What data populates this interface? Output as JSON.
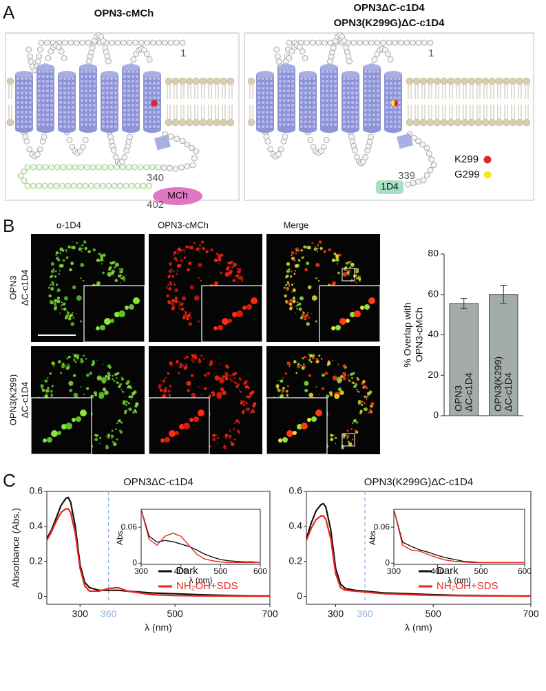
{
  "panel_labels": [
    "A",
    "B",
    "C"
  ],
  "panel_a": {
    "left_title": "OPN3-cMCh",
    "right_title": [
      "OPN3ΔC-c1D4",
      "OPN3(K299G)ΔC-c1D4"
    ],
    "left": {
      "n_terminus": "1",
      "c_end": "340",
      "tag_end": "402",
      "tag": "MCh"
    },
    "right": {
      "n_terminus": "1",
      "c_end": "339",
      "tag": "1D4",
      "legend": [
        {
          "label": "K299",
          "color": "#e0262a"
        },
        {
          "label": "G299",
          "color": "#f5e81c"
        }
      ]
    }
  },
  "panel_b": {
    "columns": [
      "α-1D4",
      "OPN3-cMCh",
      "Merge"
    ],
    "rows": [
      [
        "OPN3",
        "ΔC-c1D4"
      ],
      [
        "OPN3(K299)",
        "ΔC-c1D4"
      ]
    ]
  },
  "chart_data": [
    {
      "type": "bar",
      "ylabel": [
        "% Overlap with",
        "OPN3-cMCh"
      ],
      "categories": [
        [
          "OPN3",
          "ΔC-c1D4"
        ],
        [
          "OPN3(K299)",
          "ΔC-c1D4"
        ]
      ],
      "values": [
        55.5,
        60
      ],
      "errors": [
        2.5,
        4.5
      ],
      "color": "#a4aca8",
      "ylim": [
        0,
        80
      ],
      "yticks": [
        0,
        20,
        40,
        60,
        80
      ]
    },
    {
      "type": "line",
      "title": "OPN3ΔC-c1D4",
      "xlabel": "λ (nm)",
      "ylabel": "Absorbance (Abs.)",
      "x": [
        230,
        240,
        250,
        260,
        270,
        275,
        280,
        290,
        300,
        310,
        320,
        340,
        360,
        380,
        400,
        450,
        500,
        550,
        600,
        650,
        700
      ],
      "series": [
        {
          "name": "Dark",
          "color": "#111111",
          "values": [
            0.33,
            0.38,
            0.45,
            0.52,
            0.56,
            0.565,
            0.54,
            0.4,
            0.18,
            0.08,
            0.05,
            0.035,
            0.035,
            0.035,
            0.03,
            0.02,
            0.015,
            0.01,
            0.006,
            0.003,
            0.002
          ]
        },
        {
          "name": "NH₂OH+SDS",
          "color": "#e8261c",
          "values": [
            0.32,
            0.37,
            0.43,
            0.48,
            0.5,
            0.5,
            0.48,
            0.36,
            0.16,
            0.06,
            0.03,
            0.03,
            0.045,
            0.05,
            0.03,
            0.01,
            0.005,
            0.003,
            0.002,
            0.001,
            0.001
          ]
        }
      ],
      "xlim": [
        230,
        700
      ],
      "xticks": [
        300,
        500,
        700
      ],
      "ylim": [
        -0.045,
        0.6
      ],
      "yticks": [
        0,
        0.2,
        0.4,
        0.6
      ],
      "vline": {
        "value": 360,
        "color": "#8fb2e0"
      },
      "legend": "lower right"
    },
    {
      "type": "line",
      "ylabel": "Abs.",
      "xlabel": "λ (nm)",
      "x": [
        300,
        320,
        340,
        360,
        380,
        400,
        420,
        440,
        460,
        480,
        500,
        520,
        540,
        560,
        580,
        600
      ],
      "series": [
        {
          "name": "Dark",
          "color": "#111111",
          "values": [
            0.09,
            0.045,
            0.035,
            0.038,
            0.036,
            0.032,
            0.028,
            0.022,
            0.015,
            0.01,
            0.006,
            0.004,
            0.003,
            0.002,
            0.002,
            0.001
          ]
        },
        {
          "name": "NH₂OH+SDS",
          "color": "#e8261c",
          "values": [
            0.09,
            0.04,
            0.03,
            0.045,
            0.05,
            0.045,
            0.03,
            0.015,
            0.007,
            0.004,
            0.002,
            0.001,
            0.001,
            0.001,
            0.001,
            0.001
          ]
        }
      ],
      "xlim": [
        300,
        600
      ],
      "xticks": [
        300,
        400,
        500,
        600
      ],
      "ylim": [
        -0.002,
        0.09
      ],
      "yticks": [
        0,
        0.06
      ]
    },
    {
      "type": "line",
      "title": "OPN3(K299G)ΔC-c1D4",
      "xlabel": "λ (nm)",
      "x": [
        240,
        250,
        260,
        270,
        275,
        280,
        290,
        300,
        310,
        320,
        340,
        360,
        380,
        400,
        450,
        500,
        550,
        600,
        650,
        700
      ],
      "series": [
        {
          "name": "Dark",
          "color": "#111111",
          "values": [
            0.33,
            0.42,
            0.49,
            0.525,
            0.53,
            0.51,
            0.38,
            0.16,
            0.07,
            0.045,
            0.035,
            0.03,
            0.025,
            0.02,
            0.015,
            0.01,
            0.006,
            0.004,
            0.003,
            0.002
          ]
        },
        {
          "name": "NH₂OH+SDS",
          "color": "#e8261c",
          "values": [
            0.32,
            0.39,
            0.44,
            0.46,
            0.46,
            0.44,
            0.33,
            0.13,
            0.05,
            0.035,
            0.03,
            0.025,
            0.02,
            0.015,
            0.01,
            0.006,
            0.004,
            0.003,
            0.002,
            0.001
          ]
        }
      ],
      "xlim": [
        240,
        700
      ],
      "xticks": [
        300,
        500,
        700
      ],
      "ylim": [
        -0.045,
        0.6
      ],
      "yticks": [
        0,
        0.2,
        0.4,
        0.6
      ],
      "vline": {
        "value": 360,
        "color": "#8fb2e0"
      },
      "legend": "lower right"
    },
    {
      "type": "line",
      "ylabel": "Abs.",
      "xlabel": "λ (nm)",
      "x": [
        300,
        320,
        340,
        360,
        380,
        400,
        420,
        440,
        460,
        480,
        500,
        520,
        540,
        560,
        580,
        600
      ],
      "series": [
        {
          "name": "Dark",
          "color": "#111111",
          "values": [
            0.09,
            0.035,
            0.028,
            0.022,
            0.018,
            0.013,
            0.009,
            0.006,
            0.003,
            0.002,
            0.001,
            0.001,
            0.001,
            0.001,
            0.001,
            0.001
          ]
        },
        {
          "name": "NH₂OH+SDS",
          "color": "#e8261c",
          "values": [
            0.09,
            0.03,
            0.022,
            0.02,
            0.014,
            0.009,
            0.005,
            0.003,
            0.002,
            0.001,
            0.001,
            0.001,
            0.001,
            0.001,
            0.001,
            0.001
          ]
        }
      ],
      "xlim": [
        300,
        600
      ],
      "xticks": [
        300,
        400,
        500,
        600
      ],
      "ylim": [
        -0.002,
        0.09
      ],
      "yticks": [
        0,
        0.06
      ]
    }
  ]
}
